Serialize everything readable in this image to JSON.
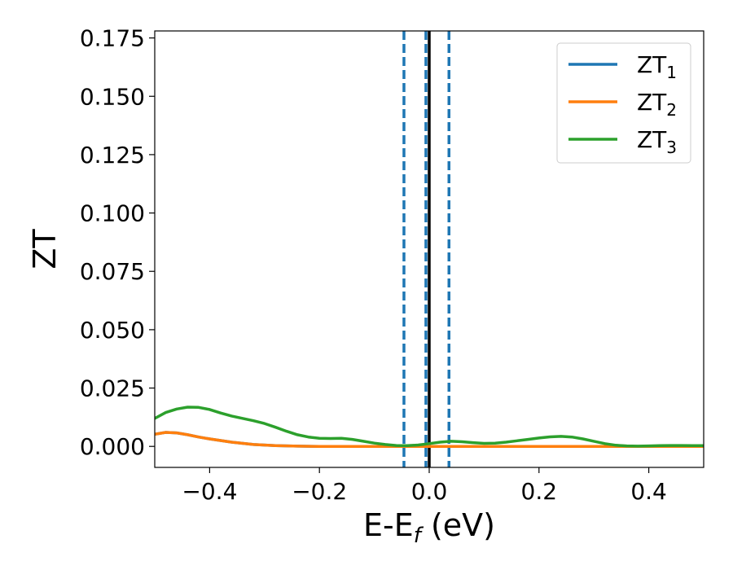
{
  "chart_data": {
    "type": "line",
    "xlabel": {
      "main": "E-E",
      "sub": "f",
      "suffix": " (eV)"
    },
    "ylabel": "ZT",
    "xlim": [
      -0.5,
      0.5
    ],
    "ylim": [
      -0.009,
      0.178
    ],
    "xticks": [
      -0.4,
      -0.2,
      0.0,
      0.2,
      0.4
    ],
    "xtick_labels": [
      "−0.4",
      "−0.2",
      "0.0",
      "0.2",
      "0.4"
    ],
    "yticks": [
      0.0,
      0.025,
      0.05,
      0.075,
      0.1,
      0.125,
      0.15,
      0.175
    ],
    "ytick_labels": [
      "0.000",
      "0.025",
      "0.050",
      "0.075",
      "0.100",
      "0.125",
      "0.150",
      "0.175"
    ],
    "grid": false,
    "legend_position": "top-right",
    "series": [
      {
        "name": "ZT",
        "name_sub": "1",
        "color": "#1f77b4",
        "x": [
          -0.5,
          -0.48,
          -0.46,
          -0.44,
          -0.42,
          -0.4,
          -0.36,
          -0.32,
          -0.28,
          -0.24,
          -0.2,
          -0.1,
          0.0,
          0.1,
          0.2,
          0.3,
          0.4,
          0.5
        ],
        "y": [
          0.0052,
          0.006,
          0.0058,
          0.005,
          0.004,
          0.0032,
          0.0018,
          0.0008,
          0.0003,
          0.0001,
          0.0,
          0.0,
          0.0,
          0.0,
          0.0,
          0.0,
          0.0,
          0.0
        ]
      },
      {
        "name": "ZT",
        "name_sub": "2",
        "color": "#ff7f0e",
        "x": [
          -0.5,
          -0.48,
          -0.46,
          -0.44,
          -0.42,
          -0.4,
          -0.36,
          -0.32,
          -0.28,
          -0.24,
          -0.2,
          -0.1,
          0.0,
          0.1,
          0.2,
          0.3,
          0.4,
          0.5
        ],
        "y": [
          0.0052,
          0.006,
          0.0058,
          0.005,
          0.004,
          0.0032,
          0.0018,
          0.0008,
          0.0003,
          0.0001,
          0.0,
          0.0,
          0.0,
          0.0,
          0.0,
          0.0,
          0.0,
          0.0
        ]
      },
      {
        "name": "ZT",
        "name_sub": "3",
        "color": "#2ca02c",
        "x": [
          -0.5,
          -0.48,
          -0.46,
          -0.44,
          -0.42,
          -0.4,
          -0.38,
          -0.36,
          -0.34,
          -0.32,
          -0.3,
          -0.28,
          -0.26,
          -0.24,
          -0.22,
          -0.2,
          -0.18,
          -0.16,
          -0.14,
          -0.12,
          -0.1,
          -0.08,
          -0.06,
          -0.04,
          -0.02,
          0.0,
          0.02,
          0.04,
          0.06,
          0.08,
          0.1,
          0.12,
          0.14,
          0.16,
          0.18,
          0.2,
          0.22,
          0.24,
          0.26,
          0.28,
          0.3,
          0.32,
          0.34,
          0.36,
          0.38,
          0.4,
          0.42,
          0.44,
          0.46,
          0.48,
          0.5
        ],
        "y": [
          0.012,
          0.0145,
          0.016,
          0.0168,
          0.0167,
          0.0158,
          0.0143,
          0.013,
          0.012,
          0.011,
          0.0098,
          0.0082,
          0.0065,
          0.005,
          0.004,
          0.0035,
          0.0034,
          0.0035,
          0.003,
          0.0022,
          0.0014,
          0.0008,
          0.0004,
          0.0003,
          0.0006,
          0.0012,
          0.0018,
          0.0022,
          0.002,
          0.0016,
          0.0013,
          0.0014,
          0.0018,
          0.0024,
          0.003,
          0.0036,
          0.0041,
          0.0043,
          0.004,
          0.0032,
          0.0022,
          0.0012,
          0.0005,
          0.0002,
          0.0001,
          0.0002,
          0.0003,
          0.0004,
          0.0004,
          0.0003,
          0.0003
        ]
      }
    ],
    "vertical_lines": [
      {
        "x": -0.046,
        "style": "dashed",
        "color": "#1f77b4"
      },
      {
        "x": -0.006,
        "style": "dashed",
        "color": "#1f77b4"
      },
      {
        "x": 0.0,
        "style": "solid",
        "color": "#000000"
      },
      {
        "x": 0.036,
        "style": "dashed",
        "color": "#1f77b4"
      }
    ]
  }
}
